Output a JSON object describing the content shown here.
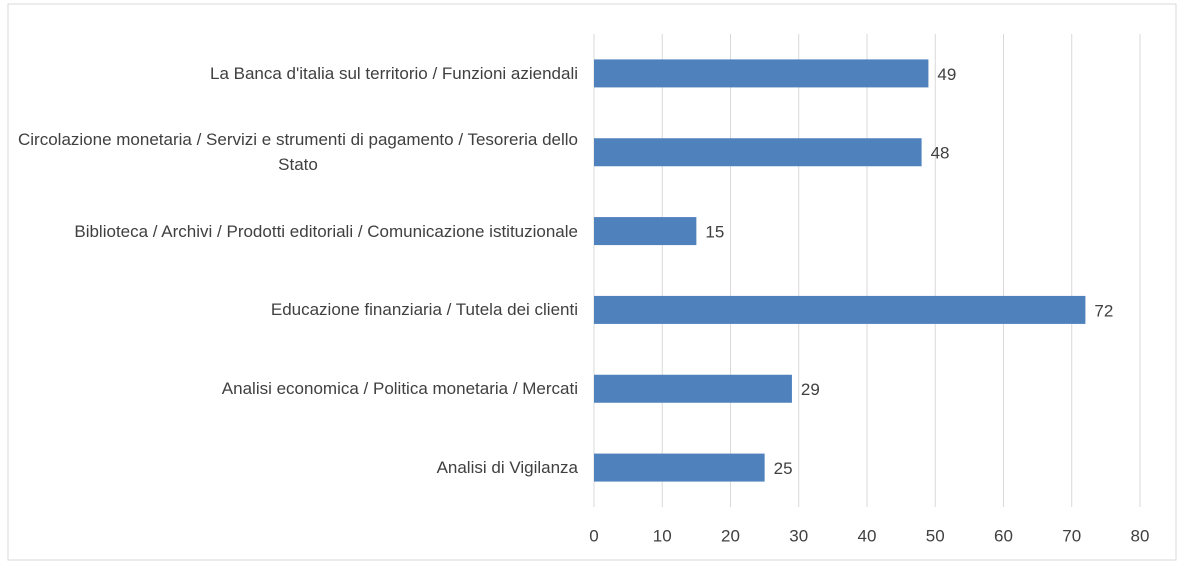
{
  "chart_data": {
    "type": "barh",
    "categories": [
      "La Banca d'italia sul territorio / Funzioni aziendali",
      "Circolazione monetaria / Servizi e strumenti di pagamento / Tesoreria dello Stato",
      "Biblioteca / Archivi / Prodotti editoriali / Comunicazione istituzionale",
      "Educazione finanziaria / Tutela dei clienti",
      "Analisi economica / Politica monetaria / Mercati",
      "Analisi di Vigilanza"
    ],
    "values": [
      49,
      48,
      15,
      72,
      29,
      25
    ],
    "color": "#4f81bd",
    "xlim": [
      0,
      80
    ],
    "xticks": [
      0,
      10,
      20,
      30,
      40,
      50,
      60,
      70,
      80
    ],
    "grid": true
  }
}
